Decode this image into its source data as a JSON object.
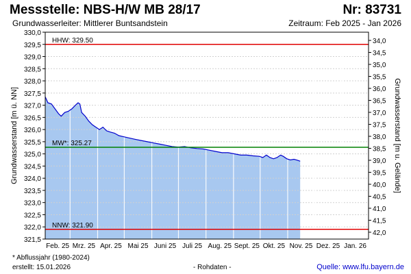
{
  "header": {
    "title": "Messstelle: NBS-H/W MB 28/17",
    "nr": "Nr: 83731",
    "aquifer": "Grundwasserleiter:   Mittlerer Buntsandstein",
    "period": "Zeitraum: Feb 2025 - Jan 2026"
  },
  "footer": {
    "footnote": "* Abflussjahr (1980-2024)",
    "created": "erstellt:  15.01.2026",
    "rawdata": "- Rohdaten -",
    "source": "Quelle: www.lfu.bayern.de"
  },
  "colors": {
    "area_fill": "#a8c8f0",
    "line": "#0000cc",
    "reference_high": "#e00000",
    "reference_mean": "#008000",
    "reference_low": "#e00000",
    "grid": "#d0d0d0",
    "source_link": "#0000cc"
  },
  "chart_data": {
    "type": "area",
    "title": "",
    "ylabel": "Grundwasserstand [m ü. NN]",
    "y2label": "Grundwasserstand [m u. Gelände]",
    "ylim": [
      321.5,
      330.0
    ],
    "y2lim": [
      34.0,
      42.0
    ],
    "xlim": [
      "2025-02-01",
      "2026-01-31"
    ],
    "grid": true,
    "y_ticks": [
      "321,5",
      "322,0",
      "322,5",
      "323,0",
      "323,5",
      "324,0",
      "324,5",
      "325,0",
      "325,5",
      "326,0",
      "326,5",
      "327,0",
      "327,5",
      "328,0",
      "328,5",
      "329,0",
      "329,5",
      "330,0"
    ],
    "y2_ticks": [
      "34,0",
      "34,5",
      "35,0",
      "35,5",
      "36,0",
      "36,5",
      "37,0",
      "37,5",
      "38,0",
      "38,5",
      "39,0",
      "39,5",
      "40,0",
      "40,5",
      "41,0",
      "41,5",
      "42,0"
    ],
    "x_ticks": [
      "Feb. 25",
      "Mrz. 25",
      "Apr. 25",
      "Mai 25",
      "Juni 25",
      "Juli 25",
      "Aug. 25",
      "Sept. 25",
      "Okt. 25",
      "Nov. 25",
      "Dez. 25",
      "Jan. 26"
    ],
    "reference_lines": [
      {
        "label": "HHW: 329.50",
        "value": 329.5,
        "kind": "high"
      },
      {
        "label": "MW*: 325.27",
        "value": 325.27,
        "kind": "mean"
      },
      {
        "label": "NNW: 321.90",
        "value": 321.9,
        "kind": "low"
      }
    ],
    "series": [
      {
        "points": [
          [
            "2025-02-01",
            327.35
          ],
          [
            "2025-02-04",
            327.1
          ],
          [
            "2025-02-08",
            327.05
          ],
          [
            "2025-02-12",
            326.85
          ],
          [
            "2025-02-16",
            326.65
          ],
          [
            "2025-02-19",
            326.55
          ],
          [
            "2025-02-23",
            326.7
          ],
          [
            "2025-02-27",
            326.75
          ],
          [
            "2025-03-03",
            326.85
          ],
          [
            "2025-03-07",
            327.0
          ],
          [
            "2025-03-10",
            327.1
          ],
          [
            "2025-03-12",
            327.05
          ],
          [
            "2025-03-14",
            326.7
          ],
          [
            "2025-03-18",
            326.55
          ],
          [
            "2025-03-22",
            326.35
          ],
          [
            "2025-03-26",
            326.2
          ],
          [
            "2025-03-30",
            326.1
          ],
          [
            "2025-04-03",
            326.0
          ],
          [
            "2025-04-07",
            326.1
          ],
          [
            "2025-04-11",
            325.95
          ],
          [
            "2025-04-15",
            325.9
          ],
          [
            "2025-04-20",
            325.85
          ],
          [
            "2025-04-25",
            325.75
          ],
          [
            "2025-05-01",
            325.7
          ],
          [
            "2025-05-07",
            325.65
          ],
          [
            "2025-05-13",
            325.6
          ],
          [
            "2025-05-20",
            325.55
          ],
          [
            "2025-05-27",
            325.5
          ],
          [
            "2025-06-03",
            325.45
          ],
          [
            "2025-06-10",
            325.4
          ],
          [
            "2025-06-17",
            325.35
          ],
          [
            "2025-06-24",
            325.3
          ],
          [
            "2025-07-01",
            325.28
          ],
          [
            "2025-07-08",
            325.3
          ],
          [
            "2025-07-15",
            325.25
          ],
          [
            "2025-07-22",
            325.22
          ],
          [
            "2025-07-29",
            325.2
          ],
          [
            "2025-08-05",
            325.15
          ],
          [
            "2025-08-12",
            325.1
          ],
          [
            "2025-08-19",
            325.05
          ],
          [
            "2025-08-26",
            325.05
          ],
          [
            "2025-09-02",
            325.0
          ],
          [
            "2025-09-09",
            324.95
          ],
          [
            "2025-09-16",
            324.95
          ],
          [
            "2025-09-23",
            324.92
          ],
          [
            "2025-09-30",
            324.9
          ],
          [
            "2025-10-04",
            324.85
          ],
          [
            "2025-10-08",
            324.95
          ],
          [
            "2025-10-12",
            324.85
          ],
          [
            "2025-10-16",
            324.8
          ],
          [
            "2025-10-20",
            324.85
          ],
          [
            "2025-10-24",
            324.95
          ],
          [
            "2025-10-27",
            324.9
          ],
          [
            "2025-10-31",
            324.8
          ],
          [
            "2025-11-04",
            324.75
          ],
          [
            "2025-11-08",
            324.78
          ],
          [
            "2025-11-12",
            324.74
          ],
          [
            "2025-11-15",
            324.7
          ]
        ]
      }
    ]
  }
}
